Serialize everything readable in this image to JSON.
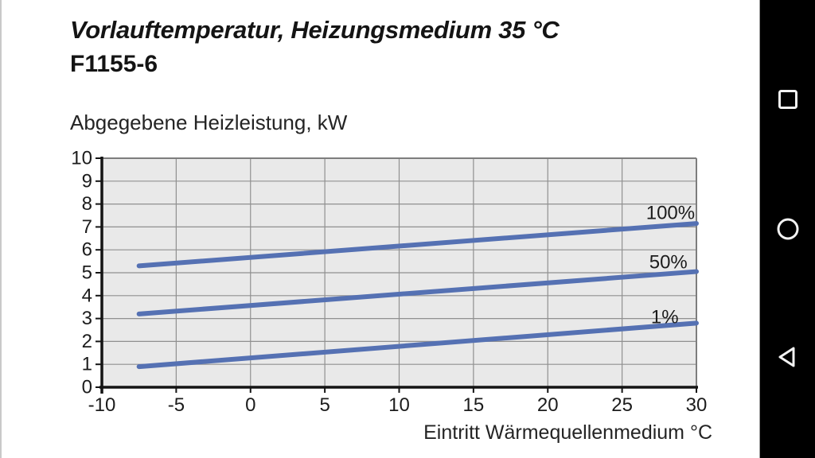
{
  "header": {
    "title": "Vorlauftemperatur, Heizungsmedium 35 °C",
    "model": "F1155-6"
  },
  "chart_data": {
    "type": "line",
    "title": "Vorlauftemperatur, Heizungsmedium 35 °C",
    "subtitle": "F1155-6",
    "ylabel": "Abgegebene Heizleistung, kW",
    "xlabel": "Eintritt Wärmequellenmedium °C",
    "xlim": [
      -10,
      30
    ],
    "ylim": [
      0,
      10
    ],
    "x_ticks": [
      -10,
      -5,
      0,
      5,
      10,
      15,
      20,
      25,
      30
    ],
    "y_ticks": [
      0,
      1,
      2,
      3,
      4,
      5,
      6,
      7,
      8,
      9,
      10
    ],
    "grid": true,
    "legend_position": "inline-right",
    "plot_bg": "#e9e9e9",
    "grid_color": "#909090",
    "axis_color": "#141414",
    "line_color": "#5571b3",
    "series": [
      {
        "name": "100%",
        "x": [
          -7.5,
          30
        ],
        "y": [
          5.3,
          7.15
        ],
        "label_anchor": {
          "x": 29.9,
          "y": 7.6
        }
      },
      {
        "name": "50%",
        "x": [
          -7.5,
          30
        ],
        "y": [
          3.2,
          5.05
        ],
        "label_anchor": {
          "x": 29.4,
          "y": 5.45
        }
      },
      {
        "name": "1%",
        "x": [
          -7.5,
          30
        ],
        "y": [
          0.9,
          2.8
        ],
        "label_anchor": {
          "x": 28.8,
          "y": 3.05
        }
      }
    ]
  },
  "navbar": {
    "buttons": [
      {
        "name": "recents",
        "icon": "square-icon"
      },
      {
        "name": "home",
        "icon": "circle-icon"
      },
      {
        "name": "back",
        "icon": "triangle-left-icon"
      }
    ]
  }
}
